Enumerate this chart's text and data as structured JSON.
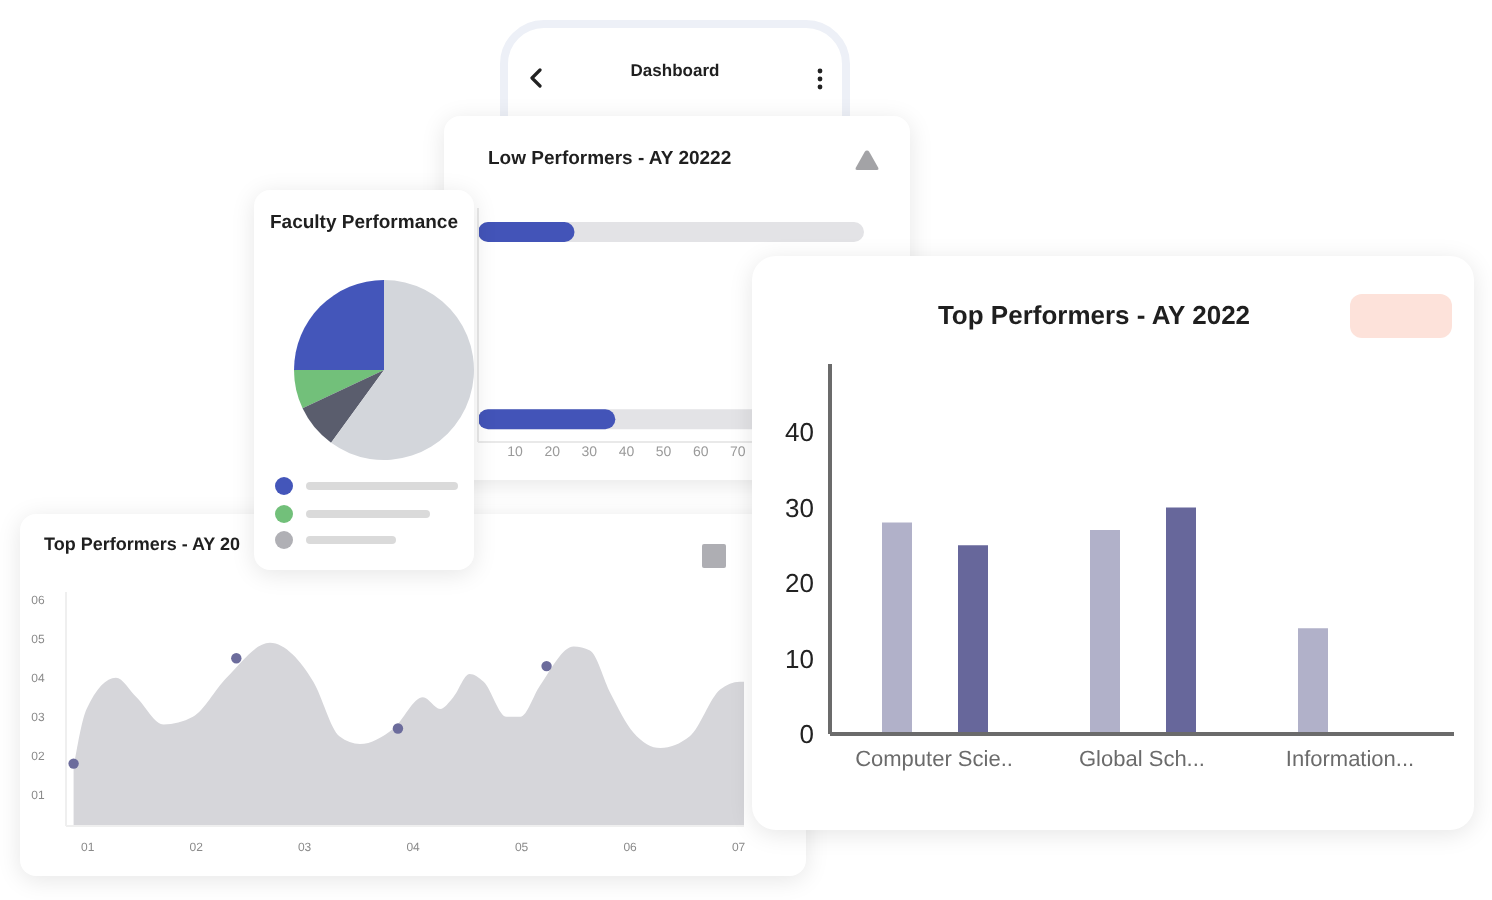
{
  "chart_data": [
    {
      "type": "other",
      "title": "Dashboard"
    },
    {
      "type": "bar",
      "orientation": "horizontal",
      "title": "Low Performers - AY 20222",
      "categories": [
        null,
        null,
        null,
        null,
        null
      ],
      "values": [
        26,
        null,
        null,
        null,
        37
      ],
      "color": "#4354b8",
      "xlim": [
        0,
        104
      ],
      "xticks": [
        10,
        20,
        30,
        40,
        50,
        60,
        70
      ],
      "tick_labels": "x"
    },
    {
      "type": "pie",
      "title": "Faculty Performance",
      "categories": [
        null,
        null,
        null,
        null
      ],
      "values": [
        25,
        7,
        8,
        60
      ],
      "colors": [
        "#4456ba",
        "#72c07a",
        "#5a5d6d",
        "#d3d6db"
      ]
    },
    {
      "type": "bar",
      "title": "Top Performers - AY 2022",
      "categories": [
        "Computer Scie..",
        "Global Sch...",
        "Information..."
      ],
      "series": [
        {
          "color": "#b1b1c9",
          "values": [
            28,
            27,
            14
          ]
        },
        {
          "color": "#67679b",
          "values": [
            25,
            30,
            null
          ]
        }
      ],
      "ylim": [
        0,
        49
      ],
      "yticks": [
        0,
        10,
        20,
        30,
        40
      ]
    },
    {
      "type": "area",
      "title": "Top Performers - AY 20",
      "series": [
        {
          "type": "area",
          "color": "#d6d6da",
          "x": [
            0.87,
            0.99,
            1.26,
            1.45,
            1.7,
            1.97,
            2.28,
            2.68,
            2.89,
            3.08,
            3.32,
            3.51,
            3.82,
            4.09,
            4.25,
            4.37,
            4.52,
            4.65,
            4.86,
            4.99,
            5.17,
            5.48,
            5.63,
            5.82,
            6.03,
            6.28,
            6.55,
            6.83,
            7.01,
            7.05
          ],
          "values": [
            1.7,
            3.2,
            4.0,
            3.5,
            2.8,
            3.0,
            4.0,
            4.9,
            4.6,
            3.9,
            2.5,
            2.3,
            2.7,
            3.5,
            3.2,
            3.5,
            4.1,
            3.9,
            3.0,
            3.0,
            3.8,
            4.8,
            4.7,
            3.6,
            2.6,
            2.2,
            2.5,
            3.7,
            3.9,
            3.9
          ]
        },
        {
          "type": "scatter",
          "color": "#6c6c9c",
          "marker": "circle",
          "x": [
            0.87,
            2.37,
            3.86,
            5.23
          ],
          "values": [
            1.8,
            4.5,
            2.7,
            4.3
          ]
        }
      ],
      "xlim": [
        0.8,
        7.05
      ],
      "xticks": [
        {
          "value": 1,
          "label": "01"
        },
        {
          "value": 2,
          "label": "02"
        },
        {
          "value": 3,
          "label": "03"
        },
        {
          "value": 4,
          "label": "04"
        },
        {
          "value": 5,
          "label": "05"
        },
        {
          "value": 6,
          "label": "06"
        },
        {
          "value": 7,
          "label": "07"
        }
      ],
      "ylim": [
        0.2,
        6.2
      ],
      "yticks": [
        {
          "value": 1,
          "label": "01"
        },
        {
          "value": 2,
          "label": "02"
        },
        {
          "value": 3,
          "label": "03"
        },
        {
          "value": 4,
          "label": "04"
        },
        {
          "value": 5,
          "label": "05"
        },
        {
          "value": 6,
          "label": "06"
        }
      ]
    }
  ]
}
